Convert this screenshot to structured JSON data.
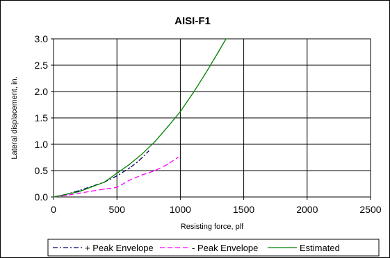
{
  "chart_data": {
    "type": "line",
    "title": "AISI-F1",
    "xlabel": "Resisting force, plf",
    "ylabel": "Lateral displacement, in.",
    "xlim": [
      0,
      2500
    ],
    "ylim": [
      0,
      3.0
    ],
    "x_ticks": [
      "0",
      "500",
      "1000",
      "1500",
      "2000",
      "2500"
    ],
    "y_ticks": [
      "0.0",
      "0.5",
      "1.0",
      "1.5",
      "2.0",
      "2.5",
      "3.0"
    ],
    "x_tick_values": [
      0,
      500,
      1000,
      1500,
      2000,
      2500
    ],
    "y_tick_values": [
      0,
      0.5,
      1.0,
      1.5,
      2.0,
      2.5,
      3.0
    ],
    "grid": true,
    "legend_position": "bottom",
    "series": [
      {
        "name": "+ Peak Envelope",
        "color": "#000066",
        "style": "dashdot",
        "x": [
          0,
          100,
          200,
          300,
          400,
          500,
          600,
          660,
          700,
          750
        ],
        "y": [
          0,
          0.05,
          0.12,
          0.2,
          0.28,
          0.4,
          0.55,
          0.66,
          0.75,
          0.87
        ]
      },
      {
        "name": "- Peak Envelope",
        "color": "#ff00ff",
        "style": "dashed",
        "x": [
          0,
          100,
          200,
          300,
          400,
          500,
          600,
          700,
          800,
          900,
          980
        ],
        "y": [
          0,
          0.03,
          0.07,
          0.11,
          0.15,
          0.18,
          0.32,
          0.42,
          0.5,
          0.62,
          0.75
        ]
      },
      {
        "name": "Estimated",
        "color": "#008000",
        "style": "solid",
        "x": [
          0,
          200,
          400,
          500,
          600,
          700,
          800,
          900,
          1000,
          1100,
          1200,
          1300,
          1360
        ],
        "y": [
          0,
          0.1,
          0.28,
          0.45,
          0.62,
          0.82,
          1.05,
          1.33,
          1.62,
          1.97,
          2.35,
          2.75,
          3.0
        ]
      }
    ]
  }
}
